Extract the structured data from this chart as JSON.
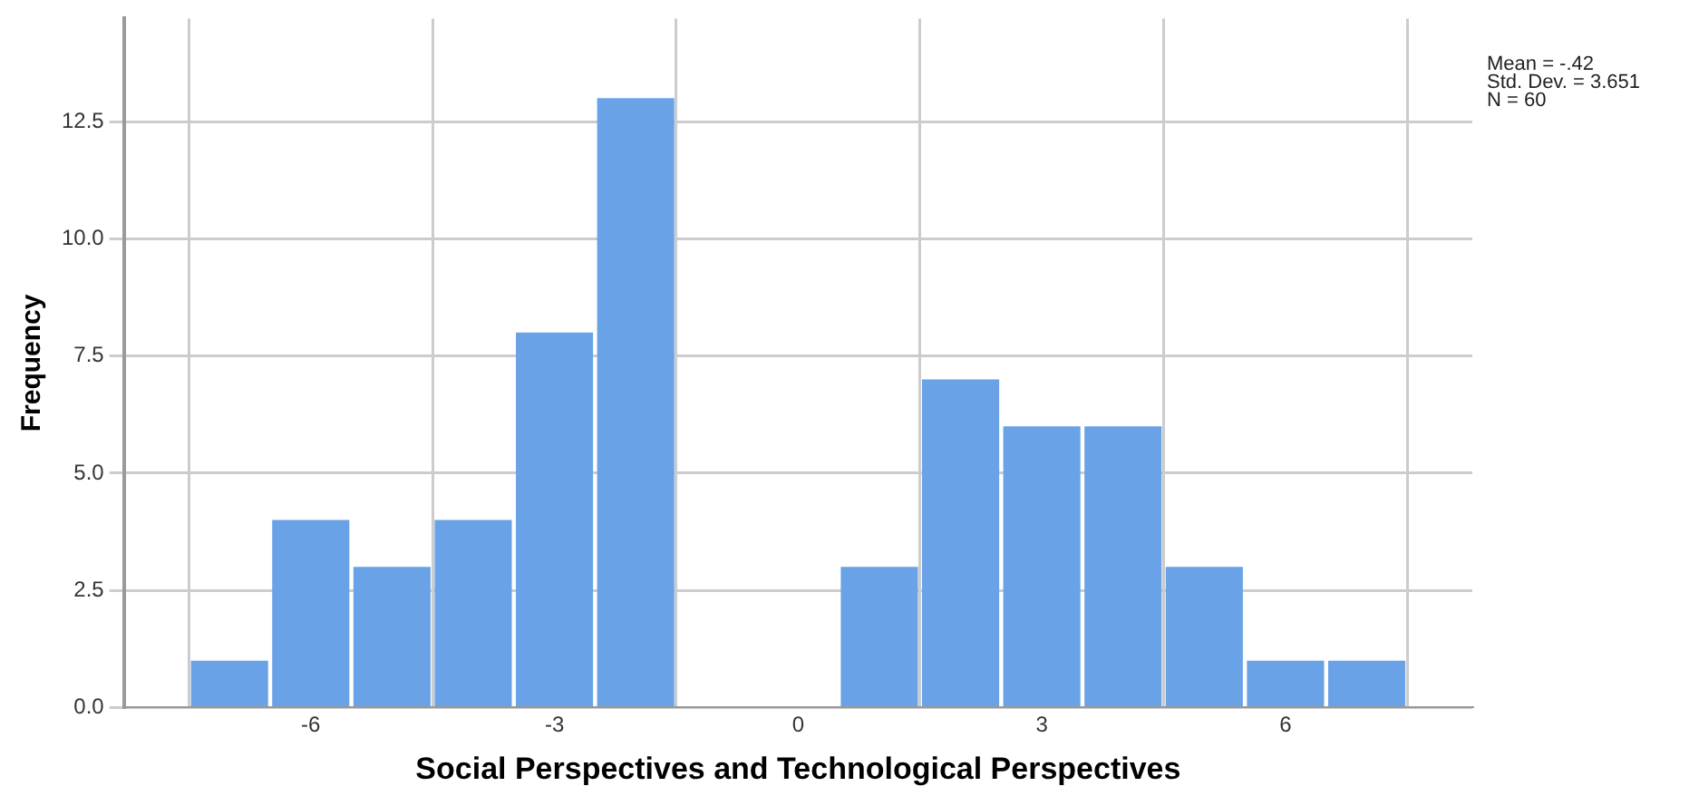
{
  "chart_data": {
    "type": "histogram",
    "xlabel": "Social Perspectives and Technological Perspectives",
    "ylabel": "Frequency",
    "bins": [
      -7.5,
      -6.5,
      -5.5,
      -4.5,
      -3.5,
      -2.5,
      -1.5,
      -0.5,
      0.5,
      1.5,
      2.5,
      3.5,
      4.5,
      5.5,
      6.5,
      7.5
    ],
    "values": [
      1,
      4,
      3,
      4,
      8,
      13,
      0,
      0,
      3,
      7,
      6,
      6,
      3,
      1,
      1
    ],
    "color": "#6aa2e8",
    "xlim": [
      -8.3,
      8.3
    ],
    "xticks": [
      -6,
      -3,
      0,
      3,
      6
    ],
    "ylim": [
      0,
      14.7
    ],
    "yticks": [
      {
        "value": 0,
        "label": "0.0"
      },
      {
        "value": 2.5,
        "label": "2.5"
      },
      {
        "value": 5,
        "label": "5.0"
      },
      {
        "value": 7.5,
        "label": "7.5"
      },
      {
        "value": 10,
        "label": "10.0"
      },
      {
        "value": 12.5,
        "label": "12.5"
      }
    ],
    "grid": true,
    "annotations": [
      "Mean = -.42",
      "Std. Dev. = 3.651",
      "N = 60"
    ]
  }
}
